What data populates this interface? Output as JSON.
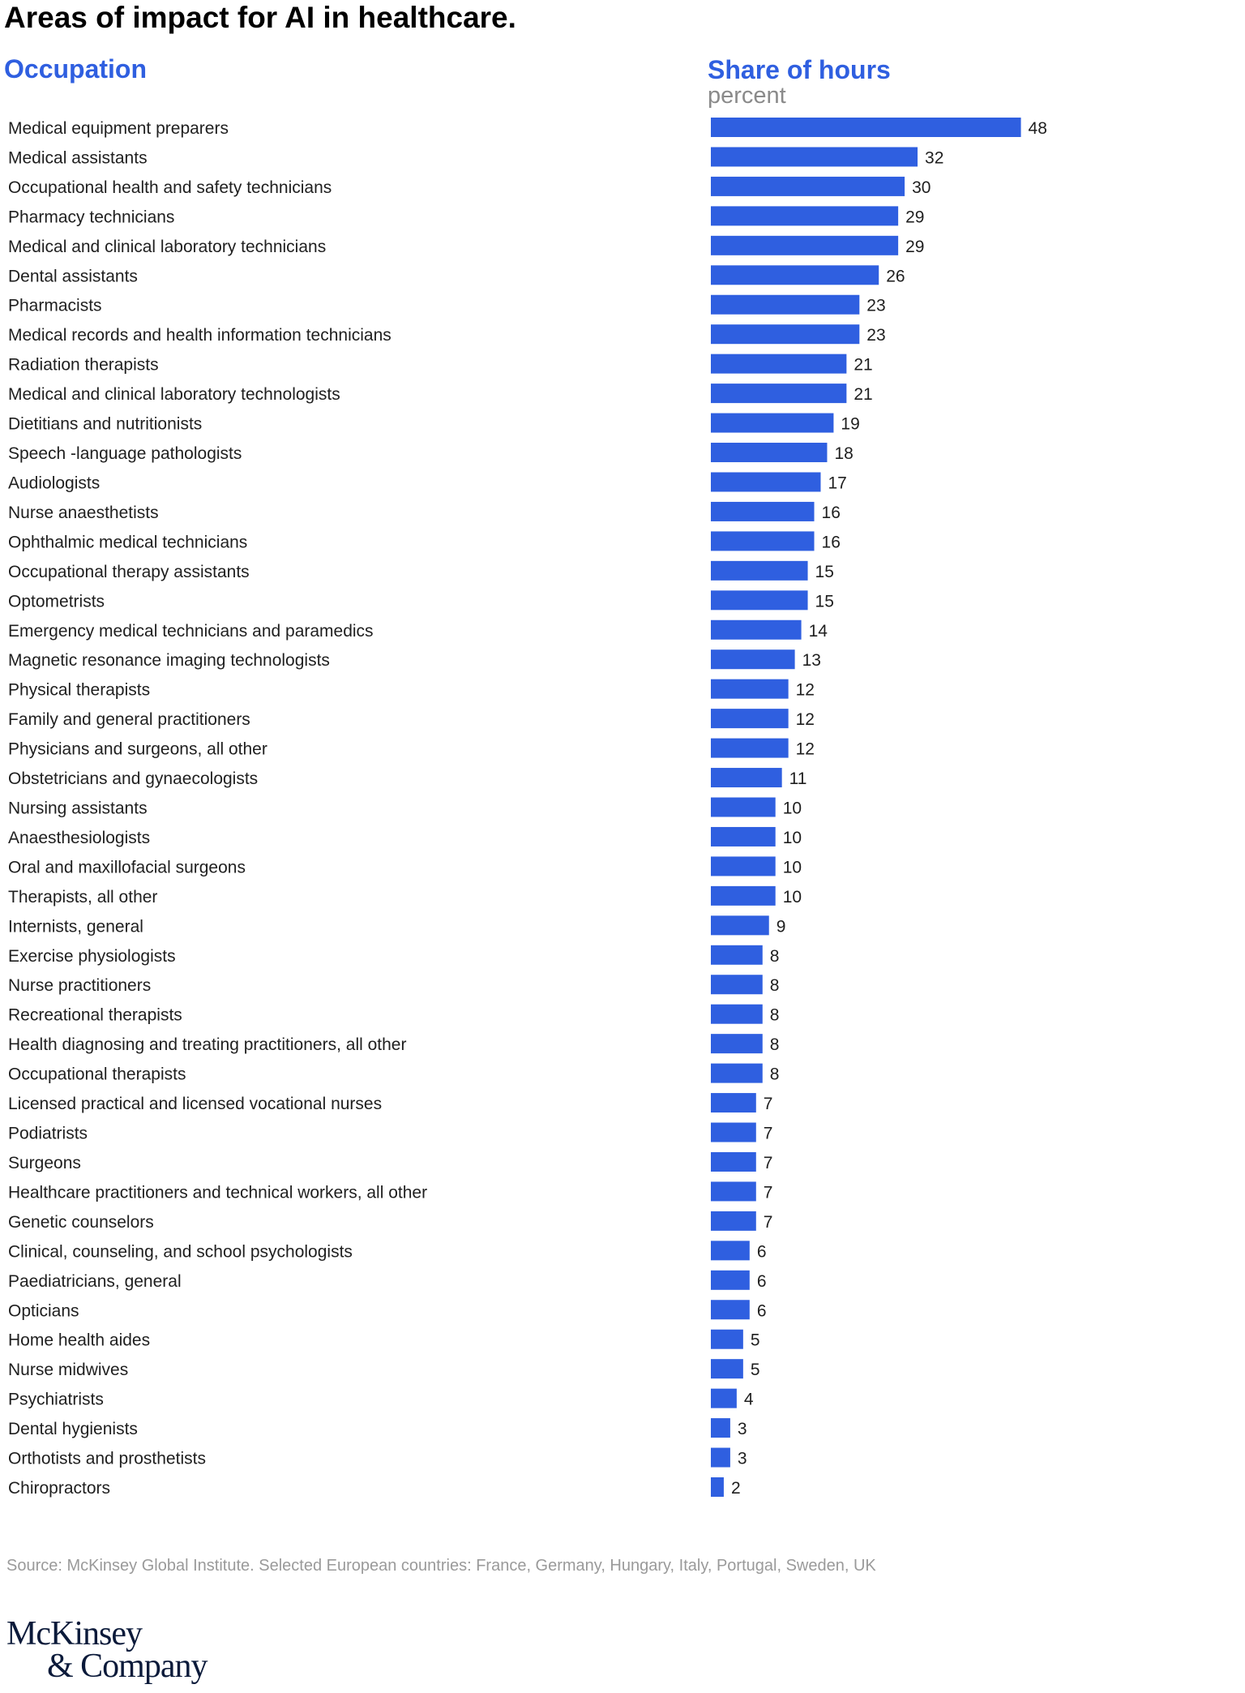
{
  "header": {
    "title": "Areas of impact for AI in healthcare.",
    "occupation_heading": "Occupation",
    "share_heading": "Share of hours",
    "unit": "percent"
  },
  "chart_data": {
    "type": "bar",
    "orientation": "horizontal",
    "title": "Areas of impact for AI in healthcare.",
    "xlabel": "Share of hours",
    "ylabel": "Occupation",
    "unit": "percent",
    "bar_color": "#2f5fe0",
    "grid": false,
    "categories": [
      "Medical equipment preparers",
      "Medical assistants",
      "Occupational health and safety technicians",
      "Pharmacy technicians",
      "Medical and clinical laboratory technicians",
      "Dental assistants",
      "Pharmacists",
      "Medical records and health information technicians",
      "Radiation therapists",
      "Medical and clinical laboratory technologists",
      "Dietitians and nutritionists",
      "Speech -language pathologists",
      "Audiologists",
      "Nurse anaesthetists",
      "Ophthalmic medical technicians",
      "Occupational therapy assistants",
      "Optometrists",
      "Emergency medical technicians and paramedics",
      "Magnetic resonance imaging technologists",
      "Physical therapists",
      "Family and general practitioners",
      "Physicians and surgeons, all other",
      "Obstetricians and gynaecologists",
      "Nursing assistants",
      "Anaesthesiologists",
      "Oral and maxillofacial surgeons",
      "Therapists, all other",
      "Internists, general",
      "Exercise physiologists",
      "Nurse practitioners",
      "Recreational therapists",
      "Health diagnosing and treating practitioners, all other",
      "Occupational therapists",
      "Licensed practical and licensed vocational nurses",
      "Podiatrists",
      "Surgeons",
      "Healthcare practitioners and technical workers, all other",
      "Genetic counselors",
      "Clinical, counseling, and school psychologists",
      "Paediatricians, general",
      "Opticians",
      "Home health aides",
      "Nurse midwives",
      "Psychiatrists",
      "Dental hygienists",
      "Orthotists and prosthetists",
      "Chiropractors"
    ],
    "values": [
      48,
      32,
      30,
      29,
      29,
      26,
      23,
      23,
      21,
      21,
      19,
      18,
      17,
      16,
      16,
      15,
      15,
      14,
      13,
      12,
      12,
      12,
      11,
      10,
      10,
      10,
      10,
      9,
      8,
      8,
      8,
      8,
      8,
      7,
      7,
      7,
      7,
      7,
      6,
      6,
      6,
      5,
      5,
      4,
      3,
      3,
      2
    ]
  },
  "footer": {
    "source": "Source: McKinsey Global Institute. Selected European countries: France, Germany, Hungary, Italy, Portugal, Sweden, UK",
    "logo_line1": "McKinsey",
    "logo_line2": "& Company"
  }
}
